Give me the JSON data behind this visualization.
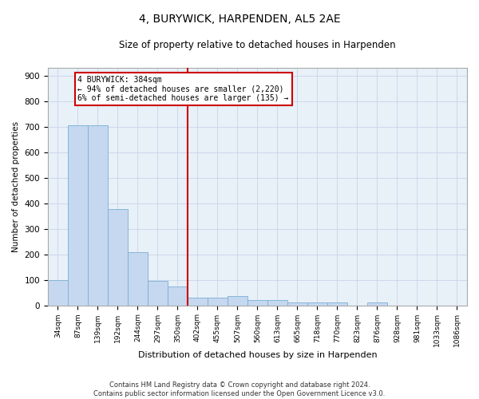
{
  "title": "4, BURYWICK, HARPENDEN, AL5 2AE",
  "subtitle": "Size of property relative to detached houses in Harpenden",
  "xlabel": "Distribution of detached houses by size in Harpenden",
  "ylabel": "Number of detached properties",
  "bar_color": "#c5d8f0",
  "bar_edge_color": "#7aafd4",
  "background_color": "#e8f0f8",
  "grid_color": "#c8d4e8",
  "annotation_box_color": "#cc0000",
  "vline_color": "#cc0000",
  "tick_labels": [
    "34sqm",
    "87sqm",
    "139sqm",
    "192sqm",
    "244sqm",
    "297sqm",
    "350sqm",
    "402sqm",
    "455sqm",
    "507sqm",
    "560sqm",
    "613sqm",
    "665sqm",
    "718sqm",
    "770sqm",
    "823sqm",
    "876sqm",
    "928sqm",
    "981sqm",
    "1033sqm",
    "1086sqm"
  ],
  "bar_heights": [
    100,
    706,
    706,
    376,
    207,
    96,
    75,
    30,
    30,
    35,
    20,
    20,
    10,
    10,
    10,
    0,
    10,
    0,
    0,
    0,
    0
  ],
  "property_label": "4 BURYWICK: 384sqm",
  "pct_smaller": "94% of detached houses are smaller (2,220)",
  "pct_larger": "6% of semi-detached houses are larger (135)",
  "vline_x_index": 6.5,
  "ylim": [
    0,
    930
  ],
  "yticks": [
    0,
    100,
    200,
    300,
    400,
    500,
    600,
    700,
    800,
    900
  ],
  "footnote1": "Contains HM Land Registry data © Crown copyright and database right 2024.",
  "footnote2": "Contains public sector information licensed under the Open Government Licence v3.0."
}
